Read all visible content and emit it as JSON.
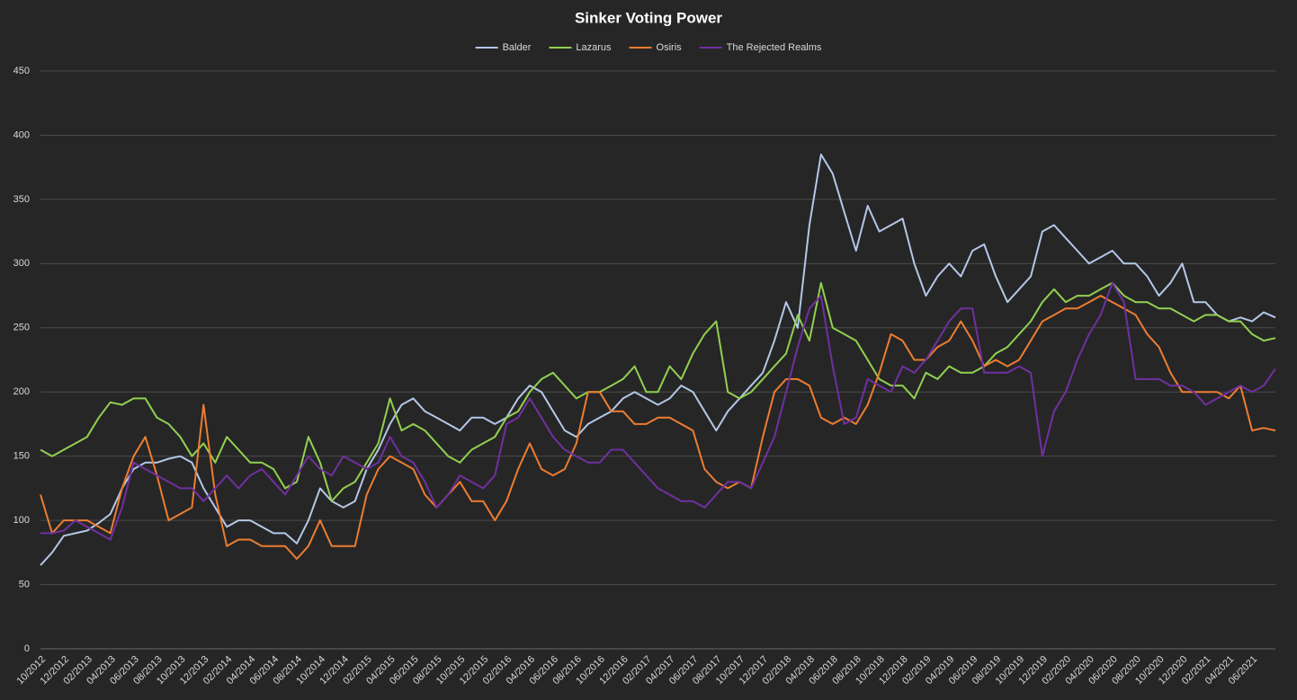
{
  "chart_data": {
    "type": "line",
    "title": "Sinker Voting Power",
    "categories": [
      "10/2012",
      null,
      "12/2012",
      null,
      "02/2013",
      null,
      "04/2013",
      null,
      "06/2013",
      null,
      "08/2013",
      null,
      "10/2013",
      null,
      "12/2013",
      null,
      "02/2014",
      null,
      "04/2014",
      null,
      "06/2014",
      null,
      "08/2014",
      null,
      "10/2014",
      null,
      "12/2014",
      null,
      "02/2015",
      null,
      "04/2015",
      null,
      "06/2015",
      null,
      "08/2015",
      null,
      "10/2015",
      null,
      "12/2015",
      null,
      "02/2016",
      null,
      "04/2016",
      null,
      "06/2016",
      null,
      "08/2016",
      null,
      "10/2016",
      null,
      "12/2016",
      null,
      "02/2017",
      null,
      "04/2017",
      null,
      "06/2017",
      null,
      "08/2017",
      null,
      "10/2017",
      null,
      "12/2017",
      null,
      "02/2018",
      null,
      "04/2018",
      null,
      "06/2018",
      null,
      "08/2018",
      null,
      "10/2018",
      null,
      "12/2018",
      null,
      "02/2019",
      null,
      "04/2019",
      null,
      "06/2019",
      null,
      "08/2019",
      null,
      "10/2019",
      null,
      "12/2019",
      null,
      "02/2020",
      null,
      "04/2020",
      null,
      "06/2020",
      null,
      "08/2020",
      null,
      "10/2020",
      null,
      "12/2020",
      null,
      "02/2021",
      null,
      "04/2021",
      null,
      "06/2021",
      null,
      null
    ],
    "series": [
      {
        "name": "Balder",
        "color": "#b4c7e7",
        "values": [
          65,
          75,
          88,
          90,
          92,
          98,
          105,
          125,
          140,
          145,
          145,
          148,
          150,
          145,
          125,
          110,
          95,
          100,
          100,
          95,
          90,
          90,
          82,
          100,
          125,
          115,
          110,
          115,
          140,
          155,
          175,
          190,
          195,
          185,
          180,
          175,
          170,
          180,
          180,
          175,
          180,
          195,
          205,
          200,
          185,
          170,
          165,
          175,
          180,
          185,
          195,
          200,
          195,
          190,
          195,
          205,
          200,
          185,
          170,
          185,
          195,
          205,
          215,
          240,
          270,
          250,
          330,
          385,
          370,
          340,
          310,
          345,
          325,
          330,
          335,
          300,
          275,
          290,
          300,
          290,
          310,
          315,
          290,
          270,
          280,
          290,
          325,
          330,
          320,
          310,
          300,
          305,
          310,
          300,
          300,
          290,
          275,
          285,
          300,
          270,
          270,
          260,
          255,
          258,
          255,
          262,
          258
        ]
      },
      {
        "name": "Lazarus",
        "color": "#92d050",
        "values": [
          155,
          150,
          155,
          160,
          165,
          180,
          192,
          190,
          195,
          195,
          180,
          175,
          165,
          150,
          160,
          145,
          165,
          155,
          145,
          145,
          140,
          125,
          130,
          165,
          145,
          115,
          125,
          130,
          145,
          160,
          195,
          170,
          175,
          170,
          160,
          150,
          145,
          155,
          160,
          165,
          180,
          185,
          200,
          210,
          215,
          205,
          195,
          200,
          200,
          205,
          210,
          220,
          200,
          200,
          220,
          210,
          230,
          245,
          255,
          200,
          195,
          200,
          210,
          220,
          230,
          260,
          240,
          285,
          250,
          245,
          240,
          225,
          210,
          205,
          205,
          195,
          215,
          210,
          220,
          215,
          215,
          220,
          230,
          235,
          245,
          255,
          270,
          280,
          270,
          275,
          275,
          280,
          285,
          275,
          270,
          270,
          265,
          265,
          260,
          255,
          260,
          260,
          255,
          255,
          245,
          240,
          242
        ]
      },
      {
        "name": "Osiris",
        "color": "#ed7d31",
        "values": [
          120,
          90,
          100,
          100,
          100,
          95,
          90,
          125,
          150,
          165,
          135,
          100,
          105,
          110,
          190,
          120,
          80,
          85,
          85,
          80,
          80,
          80,
          70,
          80,
          100,
          80,
          80,
          80,
          120,
          140,
          150,
          145,
          140,
          120,
          110,
          120,
          130,
          115,
          115,
          100,
          115,
          140,
          160,
          140,
          135,
          140,
          160,
          200,
          200,
          185,
          185,
          175,
          175,
          180,
          180,
          175,
          170,
          140,
          130,
          125,
          130,
          125,
          165,
          200,
          210,
          210,
          205,
          180,
          175,
          180,
          175,
          190,
          215,
          245,
          240,
          225,
          225,
          235,
          240,
          255,
          240,
          220,
          225,
          220,
          225,
          240,
          255,
          260,
          265,
          265,
          270,
          275,
          270,
          265,
          260,
          245,
          235,
          215,
          200,
          200,
          200,
          200,
          195,
          205,
          170,
          172,
          170
        ]
      },
      {
        "name": "The Rejected Realms",
        "color": "#7030a0",
        "values": [
          90,
          90,
          92,
          100,
          95,
          90,
          85,
          110,
          145,
          140,
          135,
          130,
          125,
          125,
          115,
          125,
          135,
          125,
          135,
          140,
          130,
          120,
          135,
          150,
          140,
          135,
          150,
          145,
          140,
          145,
          165,
          150,
          145,
          130,
          110,
          120,
          135,
          130,
          125,
          135,
          175,
          180,
          195,
          180,
          165,
          155,
          150,
          145,
          145,
          155,
          155,
          145,
          135,
          125,
          120,
          115,
          115,
          110,
          120,
          130,
          130,
          125,
          145,
          165,
          200,
          235,
          265,
          275,
          220,
          175,
          180,
          210,
          205,
          200,
          220,
          215,
          225,
          240,
          255,
          265,
          265,
          215,
          215,
          215,
          220,
          215,
          150,
          185,
          200,
          225,
          245,
          260,
          285,
          270,
          210,
          210,
          210,
          205,
          205,
          200,
          190,
          195,
          200,
          205,
          200,
          205,
          218
        ]
      }
    ],
    "ylim": [
      0,
      450
    ],
    "yticks": [
      0,
      50,
      100,
      150,
      200,
      250,
      300,
      350,
      400,
      450
    ],
    "grid": true,
    "legend": "top"
  }
}
